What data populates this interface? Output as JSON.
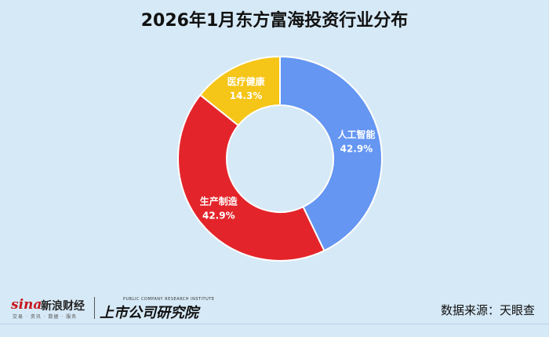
{
  "chart_data": {
    "type": "pie",
    "title": "2026年1月东方富海投资行业分布",
    "donut": true,
    "slices": [
      {
        "label": "人工智能",
        "value": 42.9,
        "pct_label": "42.9%",
        "color": "#6496f2"
      },
      {
        "label": "生产制造",
        "value": 42.9,
        "pct_label": "42.9%",
        "color": "#e3252b"
      },
      {
        "label": "医疗健康",
        "value": 14.3,
        "pct_label": "14.3%",
        "color": "#f5c518"
      }
    ],
    "slice_border_color": "#ffffff"
  },
  "footer": {
    "sina_word": "sina",
    "sina_cn": "新浪财经",
    "sina_sub": "交易 · 资讯 · 数据 · 服务",
    "inst_en": "PUBLIC COMPANY RESEARCH INSTITUTE",
    "inst_cn": "上市公司研究院",
    "source": "数据来源：天眼查"
  }
}
